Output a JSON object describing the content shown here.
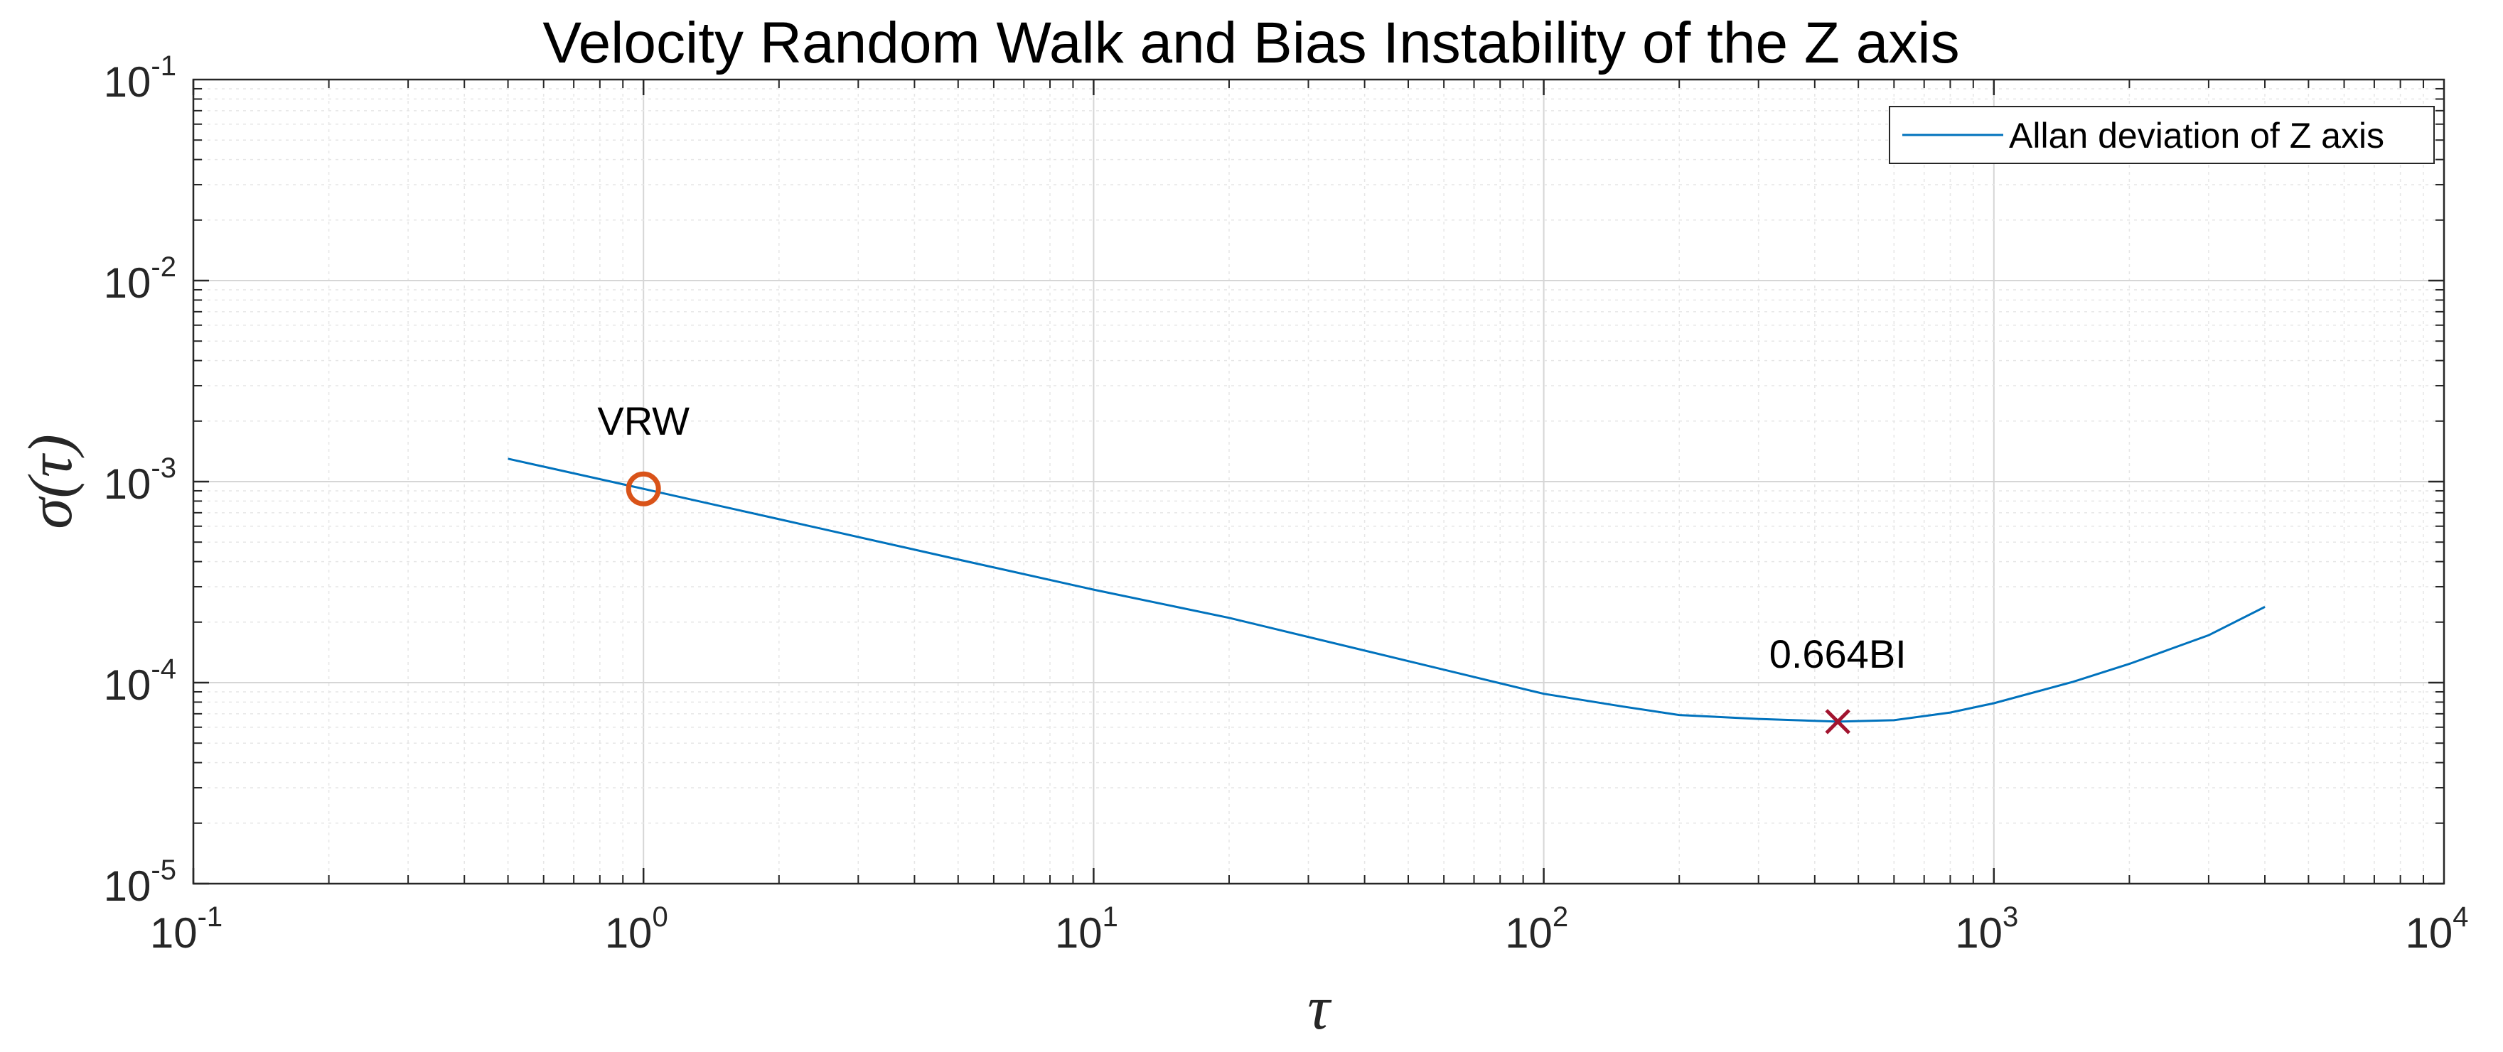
{
  "chart_data": {
    "type": "line",
    "title": "Velocity Random Walk and Bias Instability of the Z axis",
    "xlabel": "τ",
    "ylabel": "σ(τ)",
    "xscale": "log",
    "yscale": "log",
    "xlim": [
      0.1,
      10000
    ],
    "ylim": [
      1e-05,
      0.1
    ],
    "grid": true,
    "minor_grid": true,
    "legend_position": "top-right",
    "x_ticks": [
      {
        "base": "10",
        "exp": "-1"
      },
      {
        "base": "10",
        "exp": "0"
      },
      {
        "base": "10",
        "exp": "1"
      },
      {
        "base": "10",
        "exp": "2"
      },
      {
        "base": "10",
        "exp": "3"
      },
      {
        "base": "10",
        "exp": "4"
      }
    ],
    "y_ticks": [
      {
        "base": "10",
        "exp": "-5"
      },
      {
        "base": "10",
        "exp": "-4"
      },
      {
        "base": "10",
        "exp": "-3"
      },
      {
        "base": "10",
        "exp": "-2"
      },
      {
        "base": "10",
        "exp": "-1"
      }
    ],
    "series": [
      {
        "name": "Allan deviation of Z axis",
        "color": "#0072BD",
        "x": [
          0.5,
          1,
          2,
          5,
          10,
          20,
          50,
          100,
          150,
          200,
          300,
          450,
          600,
          800,
          1000,
          1500,
          2000,
          3000,
          4000
        ],
        "y": [
          0.0013,
          0.00092,
          0.00065,
          0.00041,
          0.00029,
          0.00021,
          0.000128,
          8.8e-05,
          7.6e-05,
          6.9e-05,
          6.6e-05,
          6.4e-05,
          6.5e-05,
          7.1e-05,
          7.9e-05,
          0.000101,
          0.000124,
          0.000172,
          0.000238
        ]
      }
    ],
    "markers": [
      {
        "label": "VRW",
        "x": 1,
        "y": 0.00092,
        "symbol": "circle",
        "color": "#D95319"
      },
      {
        "label": "0.664BI",
        "x": 450,
        "y": 6.4e-05,
        "symbol": "cross",
        "color": "#A2142F"
      }
    ]
  }
}
